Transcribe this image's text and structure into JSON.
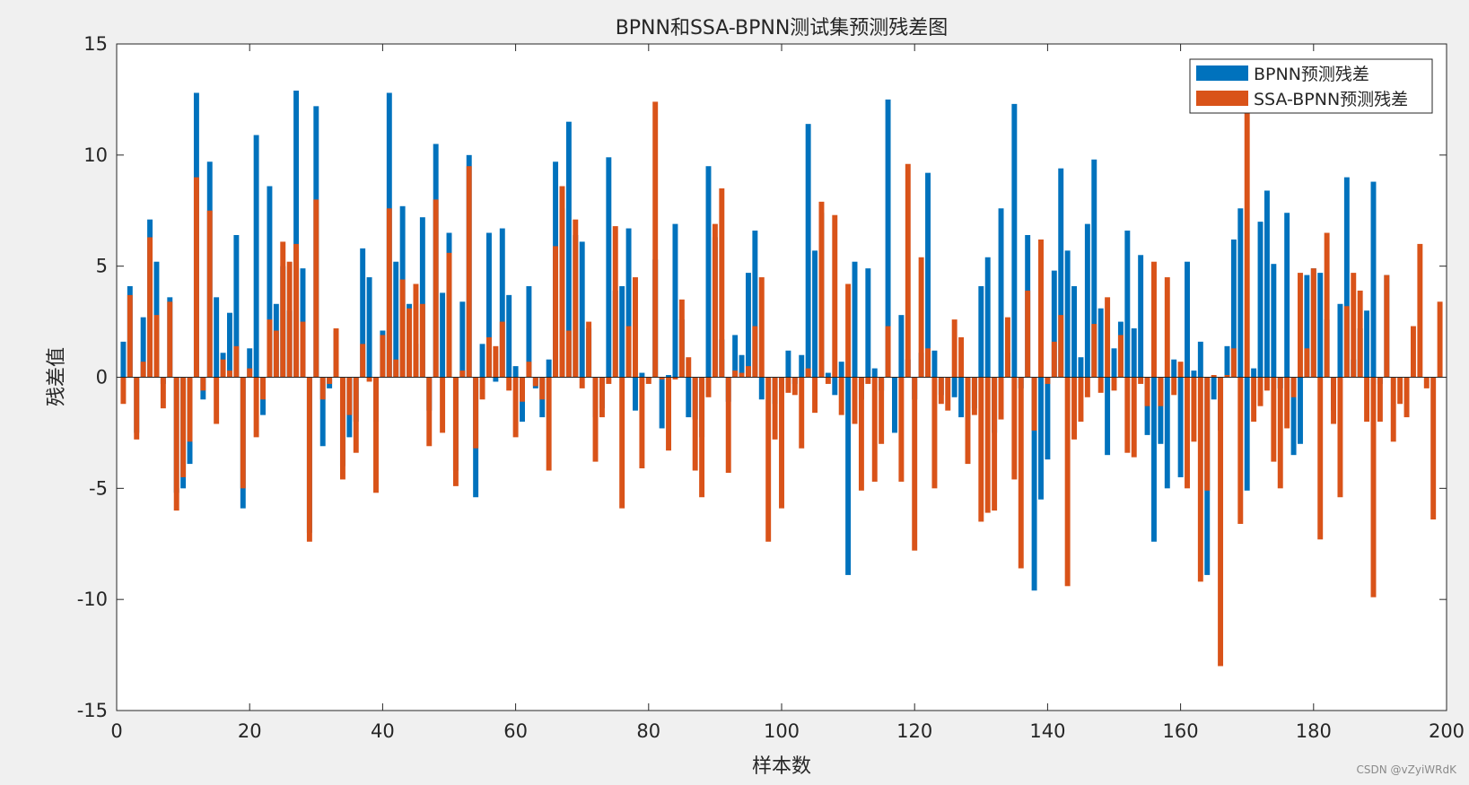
{
  "chart_data": {
    "type": "bar",
    "title": "BPNN和SSA-BPNN测试集预测残差图",
    "xlabel": "样本数",
    "ylabel": "残差值",
    "xlim": [
      0,
      200
    ],
    "ylim": [
      -15,
      15
    ],
    "xticks": [
      0,
      20,
      40,
      60,
      80,
      100,
      120,
      140,
      160,
      180,
      200
    ],
    "yticks": [
      -15,
      -10,
      -5,
      0,
      5,
      10,
      15
    ],
    "legend": "top-right",
    "grid": false,
    "series": [
      {
        "name": "BPNN预测残差",
        "color": "#0072BD",
        "values": [
          1.6,
          4.1,
          -2.5,
          2.7,
          7.1,
          5.2,
          -0.3,
          3.6,
          -5.2,
          -5.0,
          -3.9,
          12.8,
          -1.0,
          9.7,
          3.6,
          1.1,
          2.9,
          6.4,
          -5.9,
          1.3,
          10.9,
          -1.7,
          8.6,
          3.3,
          5.0,
          3.0,
          12.9,
          4.9,
          -7.0,
          12.2,
          -3.1,
          -0.5,
          2.1,
          -4.0,
          -2.7,
          -2.0,
          5.8,
          4.5,
          -2.0,
          2.1,
          12.8,
          5.2,
          7.7,
          3.3,
          1.5,
          7.2,
          -1.5,
          10.5,
          3.8,
          6.5,
          -4.2,
          3.4,
          10.0,
          -5.4,
          1.5,
          6.5,
          -0.2,
          6.7,
          3.7,
          0.5,
          -2.0,
          4.1,
          -0.5,
          -1.8,
          0.8,
          9.7,
          7.6,
          11.5,
          6.4,
          6.1,
          2.2,
          -1.8,
          -1.4,
          9.9,
          3.9,
          4.1,
          6.7,
          -1.5,
          0.2,
          -0.1,
          5.3,
          -2.3,
          0.1,
          6.9,
          2.6,
          -1.8,
          -1.9,
          -2.7,
          9.5,
          6.3,
          1.7,
          -1.1,
          1.9,
          1.0,
          4.7,
          6.6,
          -1.0,
          0.0,
          -1.2,
          -0.5,
          1.2,
          -0.3,
          1.0,
          11.4,
          5.7,
          7.4,
          0.2,
          -0.8,
          0.7,
          -8.9,
          5.2,
          -1.0,
          4.9,
          0.4,
          -0.6,
          12.5,
          -2.5,
          2.8,
          0.8,
          -1.0,
          1.1,
          9.2,
          1.2,
          -0.8,
          0.0,
          -0.9,
          -1.8,
          -1.9,
          -1.4,
          4.1,
          5.4,
          -2.5,
          7.6,
          1.1,
          12.3,
          -0.5,
          6.4,
          -9.6,
          -5.5,
          -3.7,
          4.8,
          9.4,
          5.7,
          4.1,
          0.9,
          6.9,
          9.8,
          3.1,
          -3.5,
          1.3,
          2.5,
          6.6,
          2.2,
          5.5,
          -2.6,
          -7.4,
          -3.0,
          -5.0,
          0.8,
          -4.5,
          5.2,
          0.3,
          1.6,
          -8.9,
          -1.0,
          -2.4,
          1.4,
          6.2,
          7.6,
          -5.1,
          0.4,
          7.0,
          8.4,
          5.1,
          -0.5,
          7.4,
          -3.5,
          -3.0,
          4.6,
          4.9,
          4.7,
          2.6,
          -1.5,
          3.3,
          9.0,
          0.8,
          2.2,
          3.0,
          8.8,
          -0.3,
          4.6
        ]
      },
      {
        "name": "SSA-BPNN预测残差",
        "color": "#D95319",
        "values": [
          -1.2,
          3.7,
          -2.8,
          0.7,
          6.3,
          2.8,
          -1.4,
          3.4,
          -6.0,
          -4.5,
          -2.9,
          9.0,
          -0.6,
          7.5,
          -2.1,
          0.8,
          0.3,
          1.4,
          -5.0,
          0.4,
          -2.7,
          -1.0,
          2.6,
          2.1,
          6.1,
          5.2,
          6.0,
          2.5,
          -7.4,
          8.0,
          -1.0,
          -0.3,
          2.2,
          -4.6,
          -1.7,
          -3.4,
          1.5,
          -0.2,
          -5.2,
          1.9,
          7.6,
          0.8,
          4.4,
          3.1,
          4.2,
          3.3,
          -3.1,
          8.0,
          -2.5,
          5.6,
          -4.9,
          0.3,
          9.5,
          -3.2,
          -1.0,
          1.8,
          1.4,
          2.5,
          -0.6,
          -2.7,
          -1.1,
          0.7,
          -0.4,
          -1.0,
          -4.2,
          5.9,
          8.6,
          2.1,
          7.1,
          -0.5,
          2.5,
          -3.8,
          -1.8,
          -0.3,
          6.8,
          -5.9,
          2.3,
          4.5,
          -4.1,
          -0.3,
          12.4,
          -0.1,
          -3.3,
          -0.1,
          3.5,
          0.9,
          -4.2,
          -5.4,
          -0.9,
          6.9,
          8.5,
          -4.3,
          0.3,
          0.2,
          0.5,
          2.3,
          4.5,
          -7.4,
          -2.8,
          -5.9,
          -0.7,
          -0.8,
          -3.2,
          0.4,
          -1.6,
          7.9,
          -0.3,
          7.3,
          -1.7,
          4.2,
          -2.1,
          -5.1,
          -0.3,
          -4.7,
          -3.0,
          2.3,
          0.0,
          -4.7,
          9.6,
          -7.8,
          5.4,
          1.3,
          -5.0,
          -1.2,
          -1.5,
          2.6,
          1.8,
          -3.9,
          -1.7,
          -6.5,
          -6.1,
          -6.0,
          -1.9,
          2.7,
          -4.6,
          -8.6,
          3.9,
          -2.4,
          6.2,
          -0.3,
          1.6,
          2.8,
          -9.4,
          -2.8,
          -2.0,
          -0.9,
          2.4,
          -0.7,
          3.6,
          -0.6,
          1.9,
          -3.4,
          -3.6,
          -0.3,
          -1.3,
          5.2,
          -1.3,
          4.5,
          -0.8,
          0.7,
          -5.0,
          -2.9,
          -9.2,
          -5.1,
          0.1,
          -13.0,
          0.1,
          1.3,
          -6.6,
          12.0,
          -2.0,
          -1.3,
          -0.6,
          -3.8,
          -5.0,
          -2.3,
          -0.9,
          4.7,
          1.3,
          4.9,
          -7.3,
          6.5,
          -2.1,
          -5.4,
          3.2,
          4.7,
          3.9,
          -2.0,
          -9.9,
          -2.0,
          4.6,
          -2.9,
          -1.2,
          -1.8,
          2.3,
          6.0,
          -0.5,
          -6.4,
          3.4
        ]
      }
    ]
  },
  "watermark": "CSDN @vZyiWRdK"
}
